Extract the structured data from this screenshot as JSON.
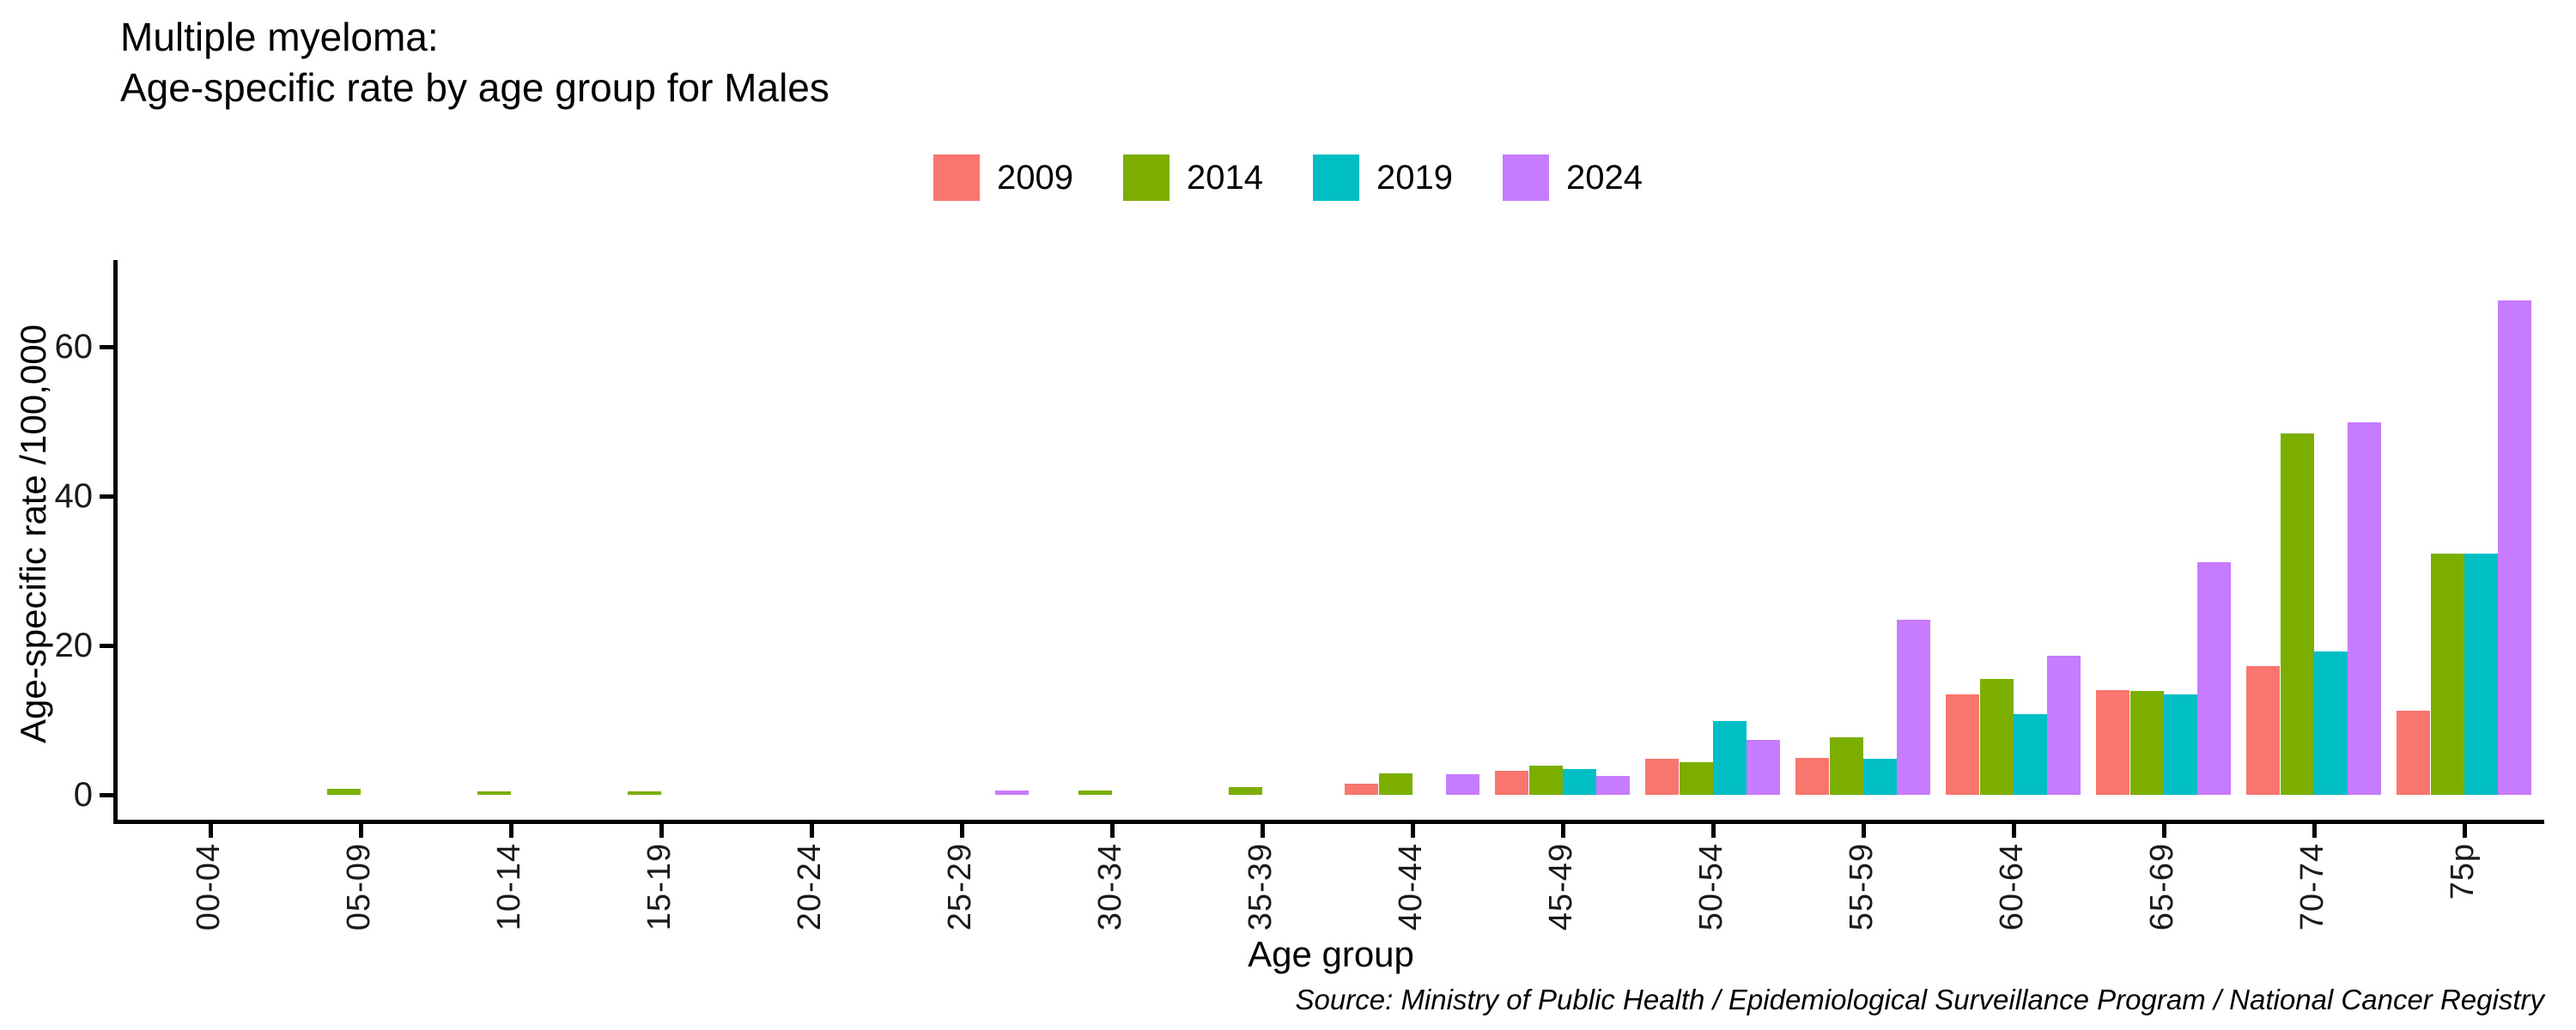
{
  "title": {
    "line1": "Multiple myeloma:",
    "line2": "Age-specific rate by age group for Males"
  },
  "axes": {
    "x_title": "Age group",
    "y_title": "Age-specific rate /100,000"
  },
  "source": "Source: Ministry of Public Health / Epidemiological Surveillance Program / National Cancer Registry",
  "chart_data": {
    "type": "bar",
    "title": "Multiple myeloma: Age-specific rate by age group for Males",
    "xlabel": "Age group",
    "ylabel": "Age-specific rate /100,000",
    "ylim": [
      0,
      68
    ],
    "y_ticks": [
      0,
      20,
      40,
      60
    ],
    "grid": false,
    "legend_position": "top-center",
    "background": "#ffffff",
    "categories": [
      "00-04",
      "05-09",
      "10-14",
      "15-19",
      "20-24",
      "25-29",
      "30-34",
      "35-39",
      "40-44",
      "45-49",
      "50-54",
      "55-59",
      "60-64",
      "65-69",
      "70-74",
      "75p"
    ],
    "series": [
      {
        "name": "2009",
        "color": "#F8766D",
        "values": [
          0,
          0,
          0,
          0,
          0,
          0,
          0,
          0,
          1.5,
          3.2,
          4.8,
          4.9,
          13.5,
          14.0,
          17.2,
          11.3
        ]
      },
      {
        "name": "2014",
        "color": "#7CAE00",
        "values": [
          0,
          0.8,
          0.5,
          0.5,
          0,
          0,
          0.6,
          1.0,
          2.9,
          3.9,
          4.4,
          7.7,
          15.5,
          13.9,
          48.4,
          32.3
        ]
      },
      {
        "name": "2019",
        "color": "#00BFC4",
        "values": [
          0,
          0,
          0,
          0,
          0,
          0,
          0,
          0,
          0,
          3.5,
          9.9,
          4.8,
          10.8,
          13.4,
          19.2,
          32.3
        ]
      },
      {
        "name": "2024",
        "color": "#C77CFF",
        "values": [
          0,
          0,
          0,
          0,
          0,
          0.6,
          0,
          0,
          2.8,
          2.5,
          7.3,
          23.5,
          18.6,
          31.1,
          49.9,
          66.2
        ]
      }
    ]
  }
}
